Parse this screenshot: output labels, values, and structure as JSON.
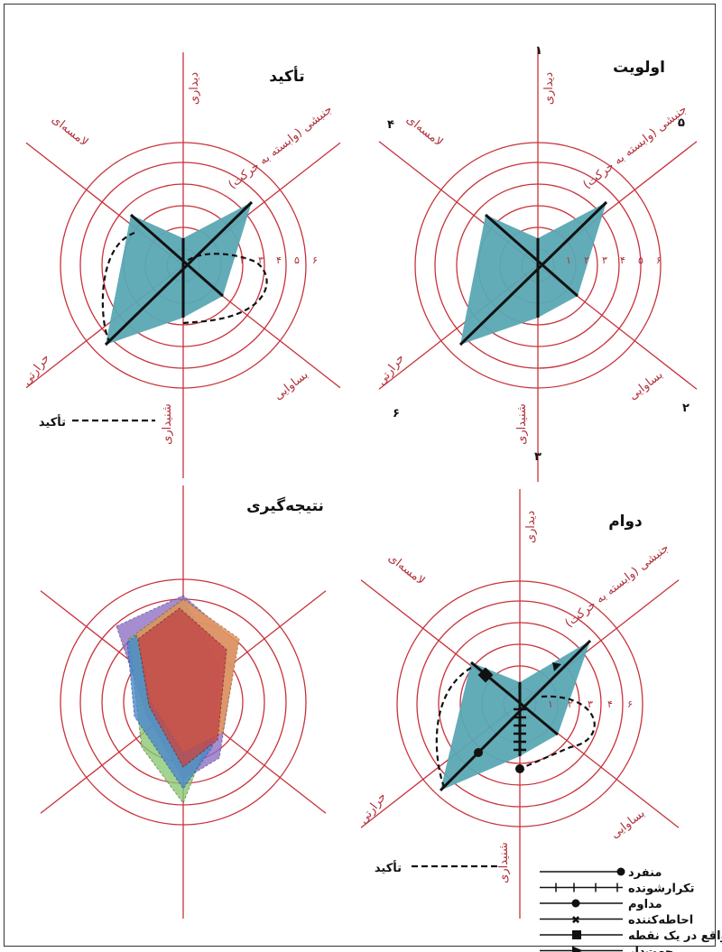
{
  "panels": {
    "priority": {
      "title": "اولویت",
      "axis_labels": {
        "top": "دیداری",
        "upper_right": "جنبشی (وابسته به حرکت)",
        "lower_right": "بساوایی",
        "bottom": "شنیداری",
        "lower_left": "حرارتی",
        "upper_left": "لامسه‌ای"
      },
      "axis_numbers": {
        "top": "۱",
        "lower_right": "۲",
        "bottom": "۳",
        "upper_left": "۴",
        "upper_right": "۵",
        "lower_left": "۶"
      },
      "ring_labels": [
        "۱",
        "۲",
        "۳",
        "۴",
        "۵",
        "۶"
      ]
    },
    "emphasis": {
      "title": "تأکید",
      "axis_labels": {
        "top": "دیداری",
        "upper_right": "جنبشی (وابسته به حرکت)",
        "lower_right": "بساوایی",
        "bottom": "شنیداری",
        "lower_left": "حرارتی",
        "upper_left": "لامسه‌ای"
      },
      "ring_labels": [
        "۲",
        "۳",
        "۴",
        "۵",
        "۶"
      ],
      "legend_label": "تأکید"
    },
    "duration": {
      "title": "دوام",
      "axis_labels": {
        "top": "دیداری",
        "upper_right": "جنبشی (وابسته به حرکت)",
        "lower_right": "بساوایی",
        "bottom": "شنیداری",
        "lower_left": "حرارتی",
        "upper_left": "لامسه‌ای"
      },
      "ring_labels": [
        "۱",
        "۲",
        "۳",
        "۴",
        "۶"
      ],
      "legend_label": "تأکید",
      "legend_items": [
        {
          "label": "منفرد",
          "marker": "end-dot"
        },
        {
          "label": "تکرارشونده",
          "marker": "ticks"
        },
        {
          "label": "مداوم",
          "marker": "mid-dot"
        },
        {
          "label": "احاطه‌کننده",
          "marker": "cross"
        },
        {
          "label": "واقع در یک نقطه",
          "marker": "square"
        },
        {
          "label": "جهت‌دار",
          "marker": "arrow"
        }
      ]
    },
    "conclusion": {
      "title": "نتیجه‌گیری"
    }
  },
  "colors": {
    "axis_red": "#c8323c",
    "label_red": "#b0303a",
    "teal_fill": "#5aa8b4",
    "purple_fill": "#8c6ec4",
    "blue_fill": "#4a86cf",
    "green_fill": "#88c872",
    "orange_fill": "#e8985a",
    "red_fill": "#c24848",
    "black": "#111111"
  }
}
